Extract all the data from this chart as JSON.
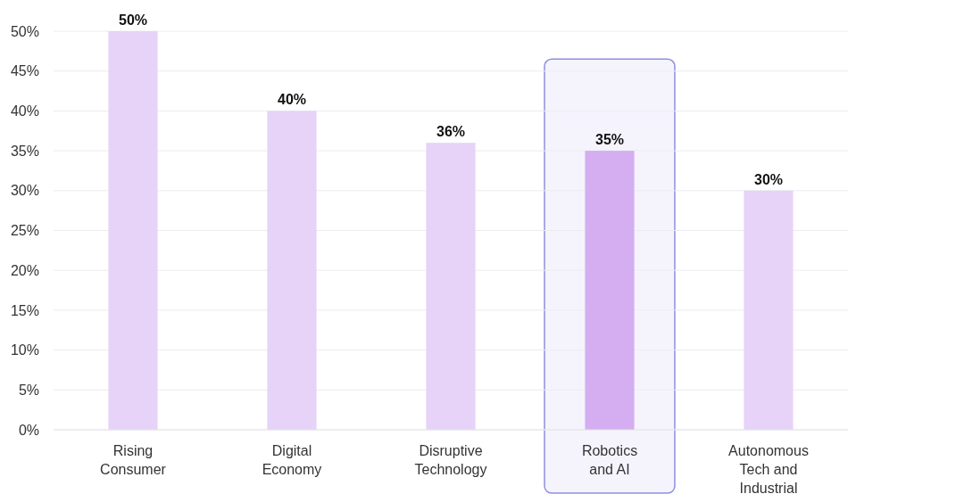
{
  "chart_data": {
    "type": "bar",
    "categories": [
      "Rising Consumer",
      "Digital Economy",
      "Disruptive Technology",
      "Robotics and AI",
      "Autonomous Tech and Industrial"
    ],
    "values": [
      50,
      40,
      36,
      35,
      30
    ],
    "colors": [
      "#e6d3f7",
      "#e6d3f7",
      "#e6d3f7",
      "#d4aef0",
      "#e6d3f7"
    ],
    "value_labels": [
      "50%",
      "40%",
      "36%",
      "35%",
      "30%"
    ],
    "ylim": [
      0,
      50
    ],
    "yticks": [
      {
        "value": 0,
        "label": "0%"
      },
      {
        "value": 5,
        "label": "5%"
      },
      {
        "value": 10,
        "label": "10%"
      },
      {
        "value": 15,
        "label": "15%"
      },
      {
        "value": 20,
        "label": "20%"
      },
      {
        "value": 25,
        "label": "25%"
      },
      {
        "value": 30,
        "label": "30%"
      },
      {
        "value": 35,
        "label": "35%"
      },
      {
        "value": 40,
        "label": "40%"
      },
      {
        "value": 45,
        "label": "45%"
      },
      {
        "value": 50,
        "label": "50%"
      }
    ],
    "grid": "y",
    "bands": [
      {
        "axis": "x",
        "from": "Robotics and AI",
        "to": "Robotics and AI",
        "color": "#f5f4fd"
      }
    ]
  }
}
